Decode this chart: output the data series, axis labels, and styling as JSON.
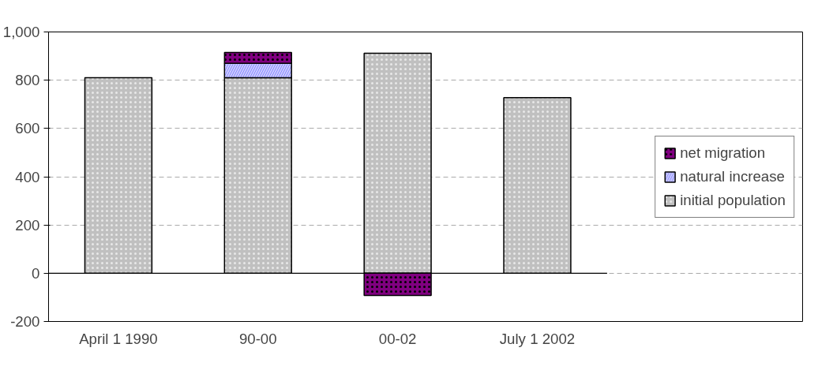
{
  "chart_data": {
    "type": "bar",
    "stacked": true,
    "categories": [
      "April 1 1990",
      "90-00",
      "00-02",
      "July 1 2002"
    ],
    "series": [
      {
        "name": "initial population",
        "color": "#c0c0c0",
        "values": [
          810,
          810,
          912,
          728
        ]
      },
      {
        "name": "natural increase",
        "color": "#ccccff",
        "values": [
          null,
          60,
          null,
          null
        ]
      },
      {
        "name": "net migration",
        "color": "#800080",
        "values": [
          null,
          45,
          -92,
          null
        ]
      }
    ],
    "ylim": [
      -200,
      1000
    ],
    "yticks": [
      {
        "value": -200,
        "label": "-200"
      },
      0,
      200,
      400,
      600,
      800,
      {
        "value": 1000,
        "label": "1,000"
      }
    ],
    "grid": "y",
    "legend": "right"
  }
}
